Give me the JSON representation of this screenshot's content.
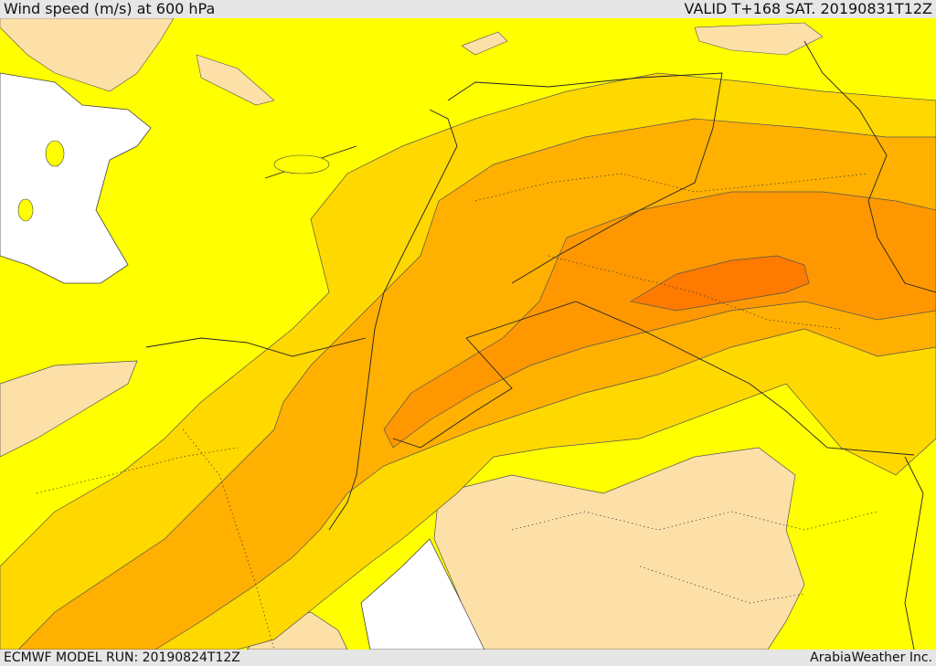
{
  "header": {
    "title": "Wind speed (m/s) at 600 hPa",
    "valid": "VALID T+168 SAT. 20190831T12Z"
  },
  "footer": {
    "model_run": "ECMWF MODEL RUN: 20190824T12Z",
    "credit": "ArabiaWeather Inc."
  },
  "colors": {
    "land_bg": "#ffff00",
    "water": "#ffffff",
    "calm": "#fde0a8",
    "level1": "#ffd800",
    "level2": "#ffb000",
    "level3": "#ff9800",
    "level4": "#ff7a00"
  }
}
